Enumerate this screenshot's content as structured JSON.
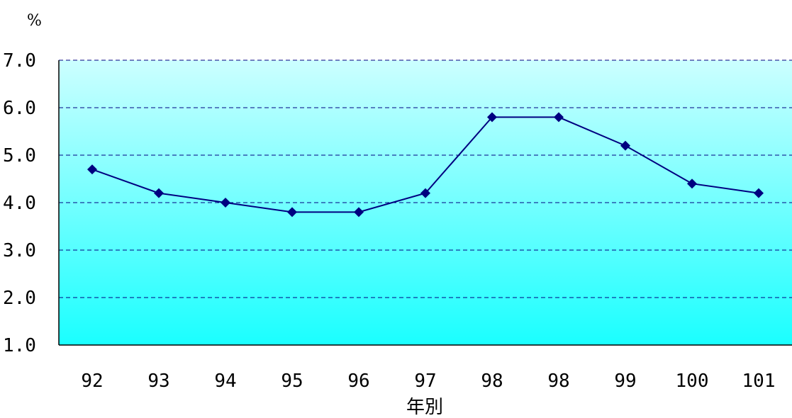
{
  "chart_data": {
    "type": "line",
    "unit_label": "%",
    "xlabel": "年別",
    "ylabel": "",
    "ylim": [
      1.0,
      7.0
    ],
    "yticks": [
      "1.0",
      "2.0",
      "3.0",
      "4.0",
      "5.0",
      "6.0",
      "7.0"
    ],
    "categories": [
      "92",
      "93",
      "94",
      "95",
      "96",
      "97",
      "98",
      "98",
      "99",
      "100",
      "101"
    ],
    "series": [
      {
        "values": [
          4.7,
          4.2,
          4.0,
          3.8,
          3.8,
          4.2,
          5.8,
          5.8,
          5.2,
          4.4,
          4.2
        ]
      }
    ],
    "grid": true,
    "colors": {
      "line": "#000080",
      "marker": "#000080",
      "plot_top": "#ccffff",
      "plot_bottom": "#1affff",
      "grid": "#000080"
    }
  }
}
